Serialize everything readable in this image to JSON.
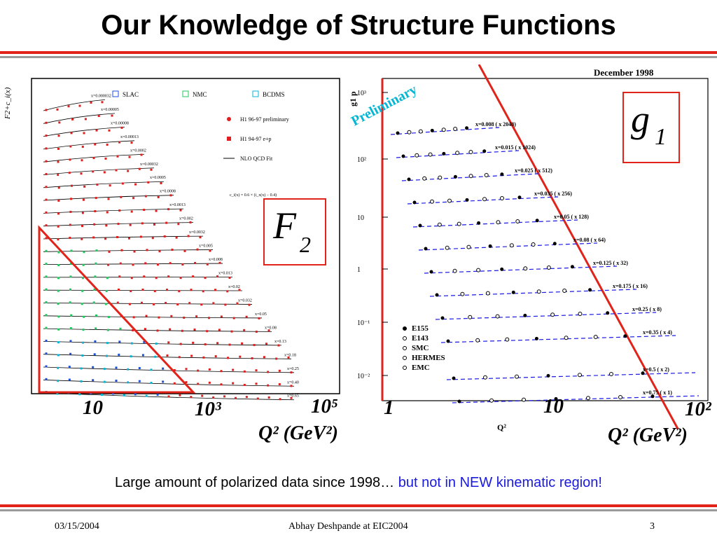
{
  "slide": {
    "title": "Our Knowledge of Structure Functions",
    "caption_main": "Large amount of polarized data since 1998…",
    "caption_highlight": "but not in NEW kinematic region!",
    "footer_date": "03/15/2004",
    "footer_author": "Abhay Deshpande at EIC2004",
    "footer_page": "3",
    "colors": {
      "accent_red": "#e2231a",
      "rule_gray": "#9b9b9b",
      "highlight_blue": "#1a1adf"
    }
  },
  "chart_data": [
    {
      "type": "scatter",
      "label_box": "F2",
      "ylabel": "F2+c_i(x)",
      "x_axis_ticks": [
        "10",
        "10³",
        "10⁵"
      ],
      "x_axis_caption": "Q² (GeV²)",
      "xscale": "log",
      "legend": [
        {
          "name": "SLAC",
          "color": "#1a4fd8",
          "marker": "square"
        },
        {
          "name": "NMC",
          "color": "#22c55e",
          "marker": "star"
        },
        {
          "name": "BCDMS",
          "color": "#06b6d4",
          "marker": "triangle"
        },
        {
          "name": "H1 96-97 preliminary",
          "color": "#e11d1d",
          "marker": "circle"
        },
        {
          "name": "H1 94-97 e+p",
          "color": "#e11d1d",
          "marker": "square"
        },
        {
          "name": "NLO QCD Fit",
          "color": "#000000",
          "marker": "line"
        }
      ],
      "formula": "c_i(x) = 0.6 × (i_x(x) − 0.4)",
      "bins": [
        "x=0.000032",
        "x=0.00005",
        "x=0.00008",
        "x=0.00013",
        "x=0.0002",
        "x=0.00032",
        "x=0.0005",
        "x=0.0008",
        "x=0.0013",
        "x=0.002",
        "x=0.0032",
        "x=0.005",
        "x=0.008",
        "x=0.013",
        "x=0.02",
        "x=0.032",
        "x=0.05",
        "x=0.08",
        "x=0.13",
        "x=0.18",
        "x=0.25",
        "x=0.40",
        "x=0.65"
      ],
      "highlight": "red triangle marks the fixed-target region"
    },
    {
      "type": "scatter",
      "label_box": "g1",
      "date": "December 1998",
      "ylabel": "g1 p",
      "watermark": "Preliminary",
      "xscale": "log",
      "yscale": "log",
      "x_axis_ticks": [
        "1",
        "10",
        "10²"
      ],
      "x_axis_caption": "Q² (GeV²)",
      "xlabel": "Q²",
      "y_axis_ticks": [
        "10³",
        "10²",
        "10",
        "1",
        "10⁻¹",
        "10⁻²"
      ],
      "legend": [
        {
          "name": "E155",
          "marker": "filled-circle"
        },
        {
          "name": "E143",
          "marker": "open-circle"
        },
        {
          "name": "SMC",
          "marker": "star"
        },
        {
          "name": "HERMES",
          "marker": "triangle"
        },
        {
          "name": "EMC",
          "marker": "open-star"
        }
      ],
      "bins": [
        "x=0.008 ( x 2048)",
        "x=0.015 ( x 1024)",
        "x=0.025 ( x 512)",
        "x=0.035 ( x 256)",
        "x=0.05 ( x 128)",
        "x=0.08 ( x 64)",
        "x=0.125 ( x 32)",
        "x=0.175 ( x 16)",
        "x=0.25 ( x 8)",
        "x=0.35 ( x 4)",
        "x=0.5 ( x 2)",
        "x=0.75 ( x 1)"
      ]
    }
  ]
}
